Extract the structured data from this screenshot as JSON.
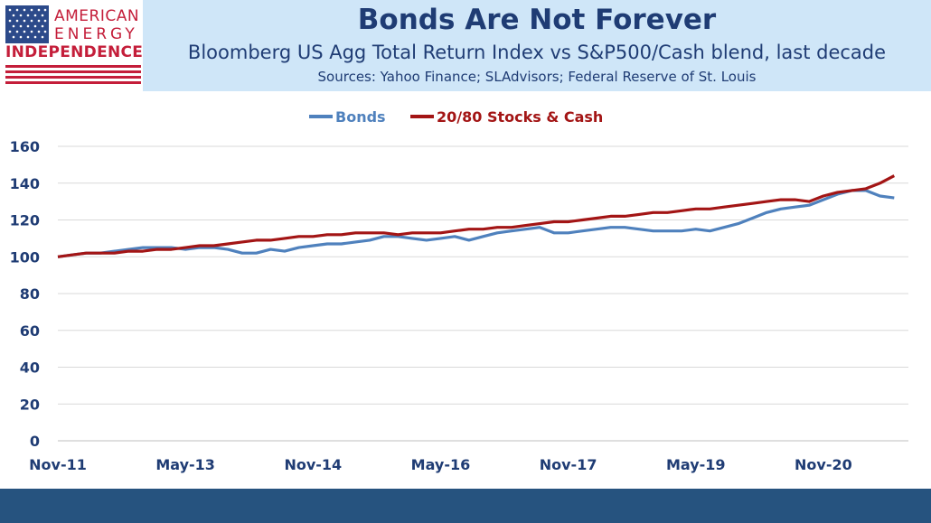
{
  "logo": {
    "line1": "AMERICAN",
    "line2": "ENERGY",
    "line3": "INDEPENDENCE"
  },
  "header": {
    "title": "Bonds Are Not Forever",
    "subtitle": "Bloomberg US Agg Total Return Index vs S&P500/Cash blend, last decade",
    "sources": "Sources: Yahoo Finance; SLAdvisors; Federal Reserve of St. Louis"
  },
  "colors": {
    "bonds": "#4f81bd",
    "stocks_cash": "#a31515",
    "axis_text": "#1f3c74",
    "header_bg": "#cfe6f8",
    "footer_bg": "#26537f"
  },
  "chart_data": {
    "type": "line",
    "x_tick_labels": [
      "Nov-11",
      "May-13",
      "Nov-14",
      "May-16",
      "Nov-17",
      "May-19",
      "Nov-20"
    ],
    "xlim": [
      0,
      120
    ],
    "ylim": [
      0,
      160
    ],
    "y_ticks": [
      0,
      20,
      40,
      60,
      80,
      100,
      120,
      140,
      160
    ],
    "grid": true,
    "legend_position": "top",
    "series": [
      {
        "name": "Bonds",
        "x": [
          0,
          2,
          4,
          6,
          8,
          10,
          12,
          14,
          16,
          18,
          20,
          22,
          24,
          26,
          28,
          30,
          32,
          34,
          36,
          38,
          40,
          42,
          44,
          46,
          48,
          50,
          52,
          54,
          56,
          58,
          60,
          62,
          64,
          66,
          68,
          70,
          72,
          74,
          76,
          78,
          80,
          82,
          84,
          86,
          88,
          90,
          92,
          94,
          96,
          98,
          100,
          102,
          104,
          106,
          108,
          110,
          112,
          114,
          116,
          118
        ],
        "values": [
          100,
          101,
          102,
          102,
          103,
          104,
          105,
          105,
          105,
          104,
          105,
          105,
          104,
          102,
          102,
          104,
          103,
          105,
          106,
          107,
          107,
          108,
          109,
          111,
          111,
          110,
          109,
          110,
          111,
          109,
          111,
          113,
          114,
          115,
          116,
          113,
          113,
          114,
          115,
          116,
          116,
          115,
          114,
          114,
          114,
          115,
          114,
          116,
          118,
          121,
          124,
          126,
          127,
          128,
          131,
          134,
          136,
          136,
          133,
          132
        ]
      },
      {
        "name": "20/80 Stocks & Cash",
        "x": [
          0,
          2,
          4,
          6,
          8,
          10,
          12,
          14,
          16,
          18,
          20,
          22,
          24,
          26,
          28,
          30,
          32,
          34,
          36,
          38,
          40,
          42,
          44,
          46,
          48,
          50,
          52,
          54,
          56,
          58,
          60,
          62,
          64,
          66,
          68,
          70,
          72,
          74,
          76,
          78,
          80,
          82,
          84,
          86,
          88,
          90,
          92,
          94,
          96,
          98,
          100,
          102,
          104,
          106,
          108,
          110,
          112,
          114,
          116,
          118
        ],
        "values": [
          100,
          101,
          102,
          102,
          102,
          103,
          103,
          104,
          104,
          105,
          106,
          106,
          107,
          108,
          109,
          109,
          110,
          111,
          111,
          112,
          112,
          113,
          113,
          113,
          112,
          113,
          113,
          113,
          114,
          115,
          115,
          116,
          116,
          117,
          118,
          119,
          119,
          120,
          121,
          122,
          122,
          123,
          124,
          124,
          125,
          126,
          126,
          127,
          128,
          129,
          130,
          131,
          131,
          130,
          133,
          135,
          136,
          137,
          140,
          144
        ]
      }
    ]
  }
}
